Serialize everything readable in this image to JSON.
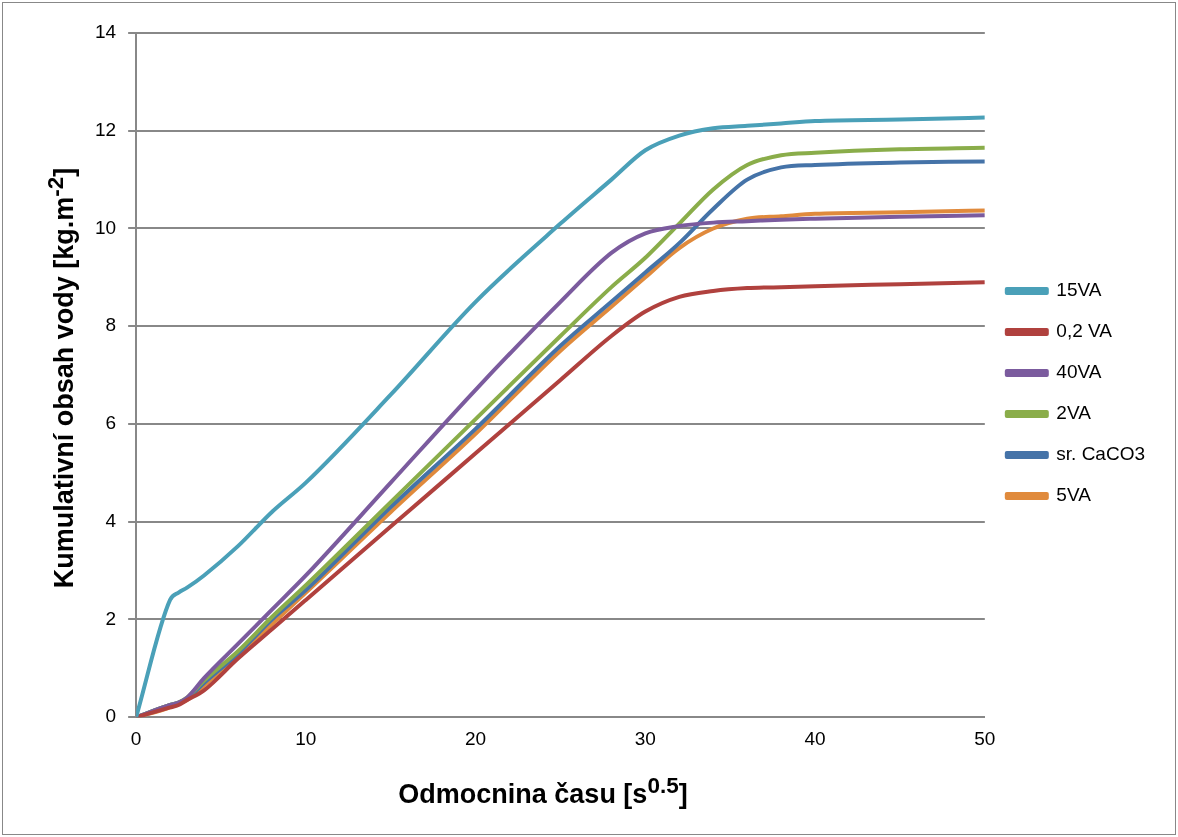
{
  "chart_data": {
    "type": "line",
    "xlabel": "Odmocnina času [s$^{0.5}$]",
    "ylabel": "Kumulativní obsah vody [kg.m$^{-2}$]",
    "x": [
      0,
      2,
      2.5,
      3,
      4,
      6,
      8,
      10,
      15,
      20,
      25,
      28,
      30,
      32,
      34,
      36,
      38,
      40,
      45,
      50
    ],
    "series": [
      {
        "name": "15VA",
        "color": "#4aa0b8",
        "values": [
          0,
          2.4,
          2.55,
          2.65,
          2.9,
          3.5,
          4.2,
          4.8,
          6.6,
          8.5,
          10.1,
          11.0,
          11.6,
          11.9,
          12.05,
          12.1,
          12.15,
          12.2,
          12.23,
          12.27
        ]
      },
      {
        "name": "0,2 VA",
        "color": "#b0413e",
        "values": [
          0,
          0.2,
          0.25,
          0.35,
          0.55,
          1.2,
          1.8,
          2.4,
          3.9,
          5.4,
          6.9,
          7.8,
          8.3,
          8.6,
          8.72,
          8.78,
          8.8,
          8.82,
          8.86,
          8.9
        ]
      },
      {
        "name": "40VA",
        "color": "#7b5b9e",
        "values": [
          0,
          0.25,
          0.3,
          0.4,
          0.8,
          1.5,
          2.2,
          2.9,
          4.8,
          6.7,
          8.5,
          9.5,
          9.9,
          10.05,
          10.12,
          10.15,
          10.18,
          10.2,
          10.24,
          10.27
        ]
      },
      {
        "name": "2VA",
        "color": "#8aad4a",
        "values": [
          0,
          0.25,
          0.3,
          0.4,
          0.75,
          1.35,
          2.05,
          2.7,
          4.4,
          6.1,
          7.8,
          8.8,
          9.4,
          10.1,
          10.8,
          11.3,
          11.5,
          11.55,
          11.62,
          11.65
        ]
      },
      {
        "name": "sr. CaCO3",
        "color": "#4573a8",
        "values": [
          0,
          0.25,
          0.3,
          0.38,
          0.7,
          1.3,
          2.0,
          2.6,
          4.3,
          5.9,
          7.6,
          8.5,
          9.1,
          9.7,
          10.4,
          11.0,
          11.25,
          11.3,
          11.35,
          11.37
        ]
      },
      {
        "name": "5VA",
        "color": "#e08a3c",
        "values": [
          0,
          0.2,
          0.28,
          0.35,
          0.65,
          1.25,
          1.9,
          2.55,
          4.2,
          5.8,
          7.5,
          8.4,
          9.0,
          9.6,
          10.0,
          10.2,
          10.25,
          10.3,
          10.33,
          10.37
        ]
      }
    ],
    "xlim": [
      0,
      50
    ],
    "xticks": [
      0,
      10,
      20,
      30,
      40,
      50
    ],
    "ylim": [
      0,
      14
    ],
    "yticks": [
      0,
      2,
      4,
      6,
      8,
      10,
      12,
      14
    ],
    "grid": "y",
    "legend": "right",
    "marker": "none",
    "line_style": "solid"
  }
}
